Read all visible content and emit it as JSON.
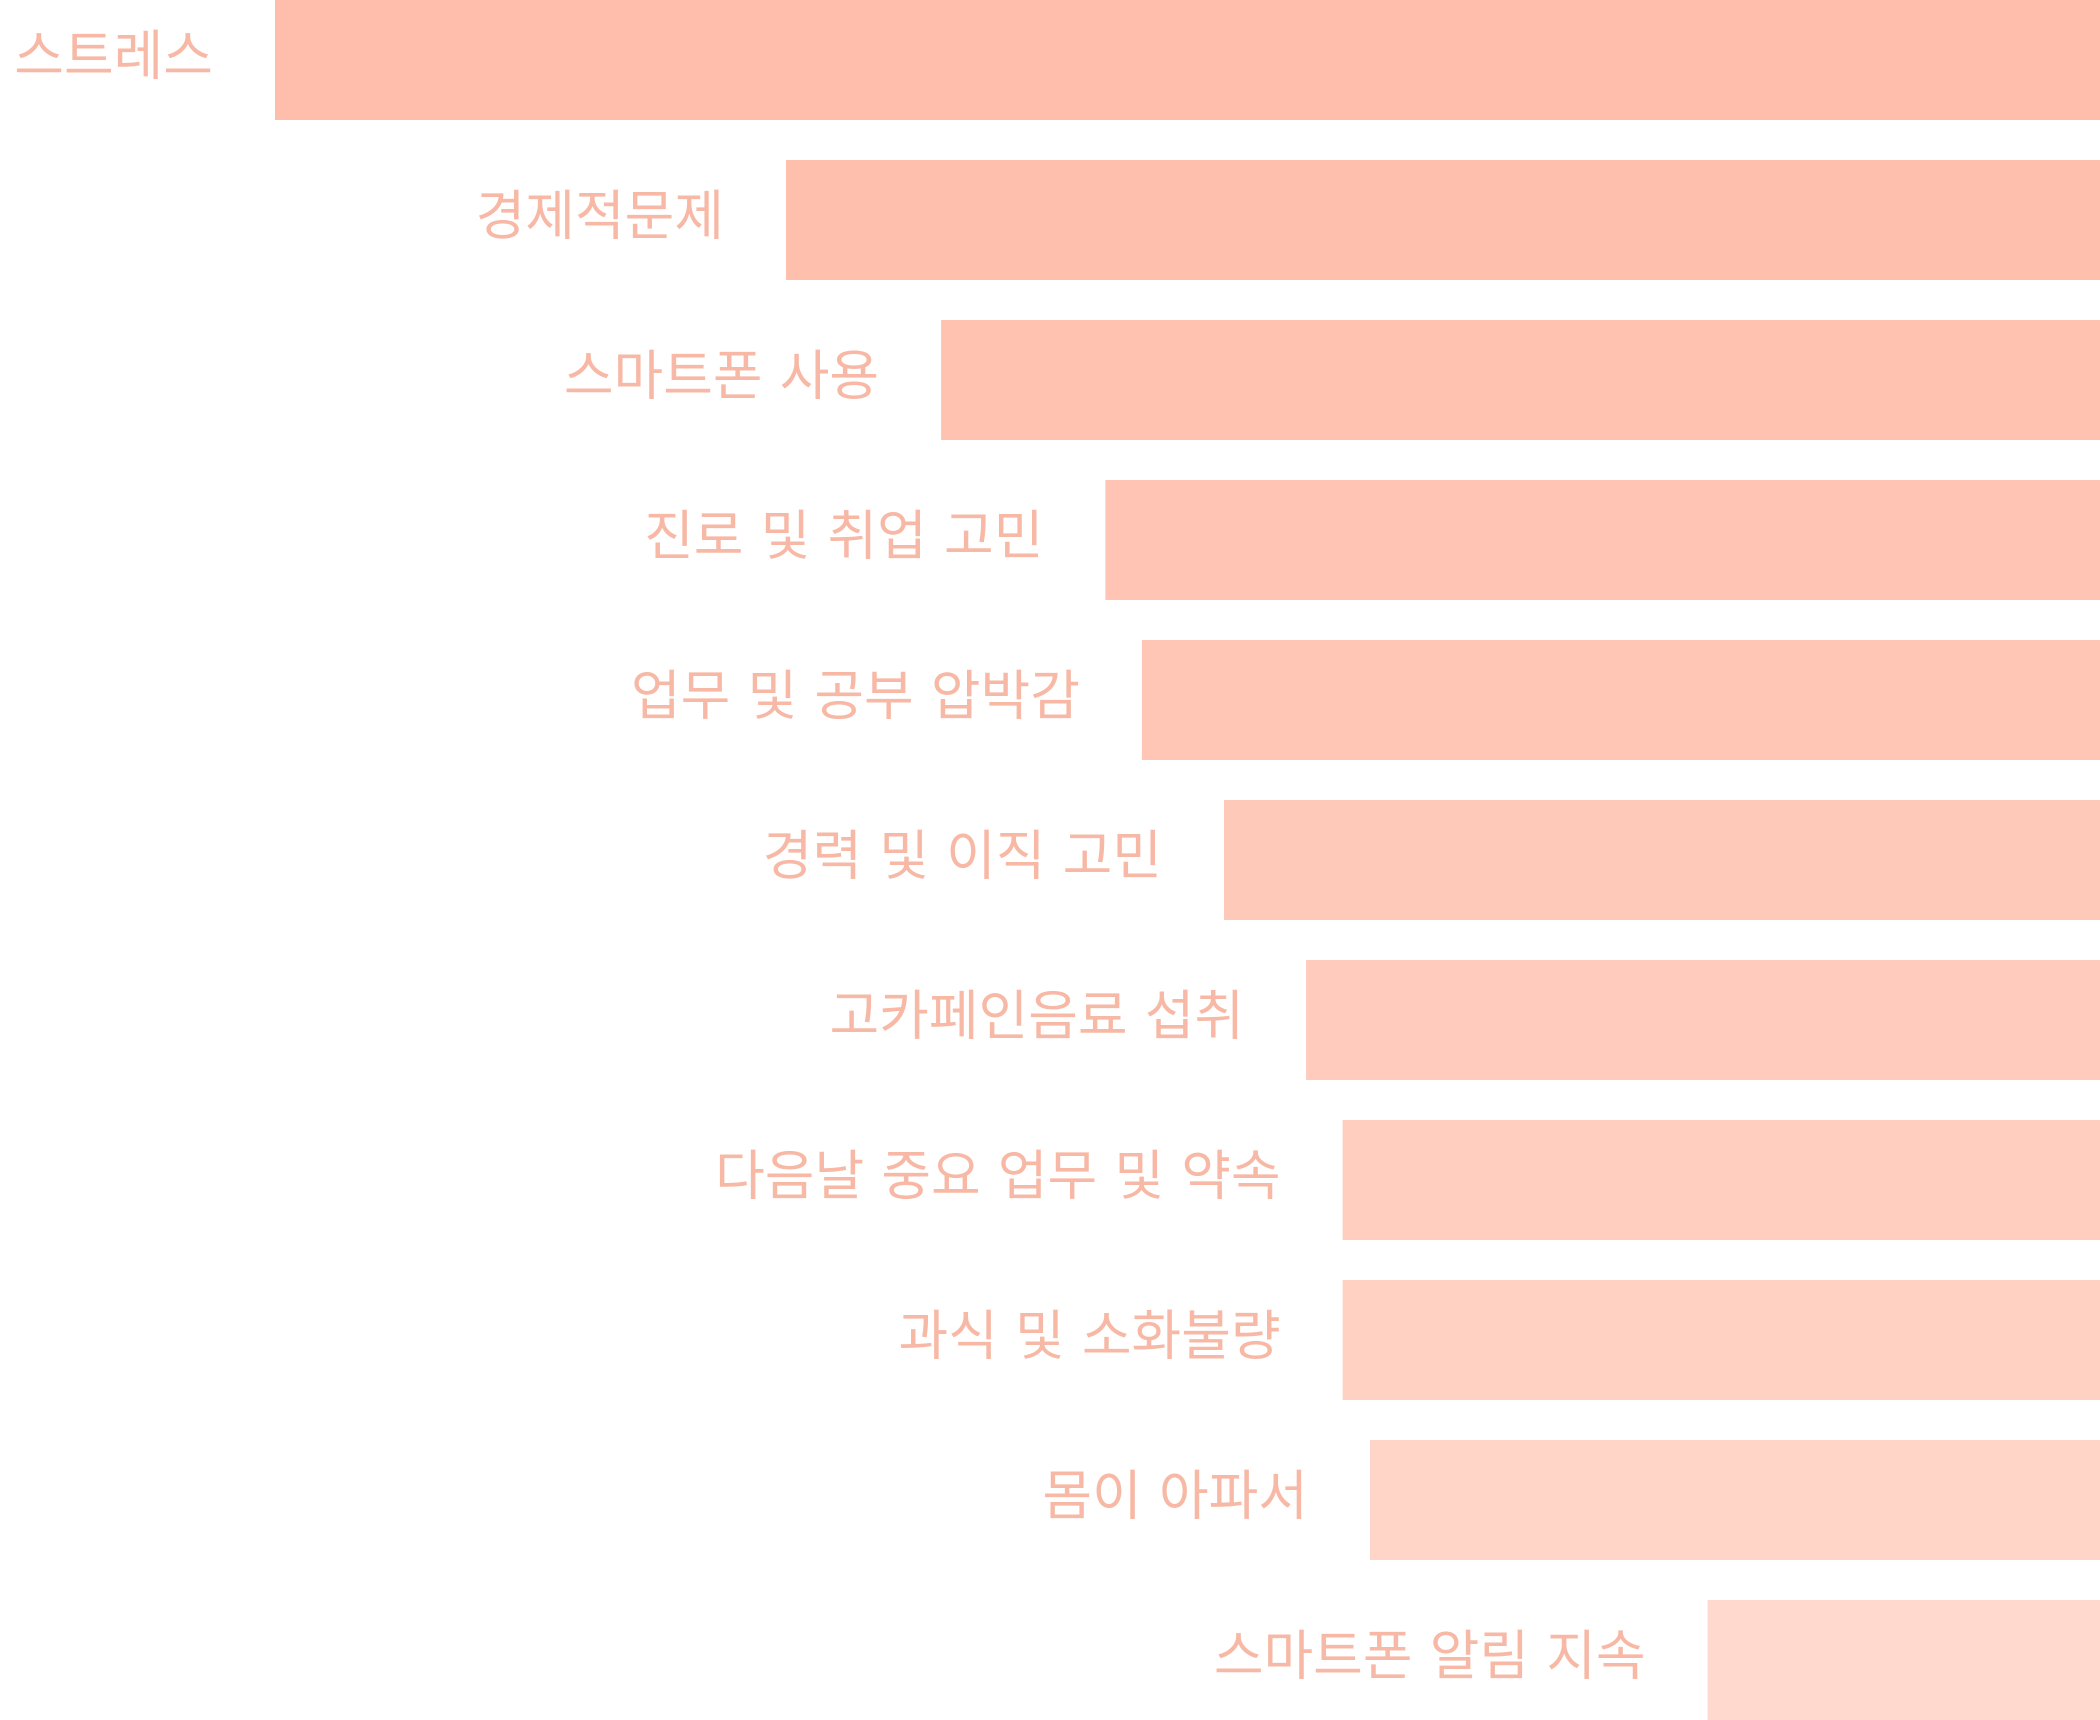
{
  "chart_data": {
    "type": "bar",
    "orientation": "horizontal",
    "title": "",
    "xlabel": "",
    "ylabel": "",
    "grid": false,
    "legend": "none",
    "categories": [
      "스트레스",
      "경제적문제",
      "스마트폰 사용",
      "진로 및 취업 고민",
      "업무 및 공부 압박감",
      "경력 및 이직 고민",
      "고카페인음료 섭취",
      "다음날 중요 업무 및 약속",
      "과식 및 소화불량",
      "몸이 아파서",
      "스마트폰 알림 지속"
    ],
    "values": [
      100,
      72,
      63.5,
      54.5,
      52.5,
      48,
      43.5,
      41.5,
      41.5,
      40,
      21.5
    ],
    "xlim": [
      0,
      100
    ]
  },
  "colors": {
    "bars": [
      "#ffbdab",
      "#ffbfad",
      "#ffc1b0",
      "#ffc4b3",
      "#ffc6b6",
      "#ffc9b9",
      "#ffcbbc",
      "#ffcebf",
      "#ffd1c3",
      "#ffd5c7",
      "#ffd9cd"
    ],
    "label_text": "#f7b9a6",
    "background": "#ffffff"
  }
}
